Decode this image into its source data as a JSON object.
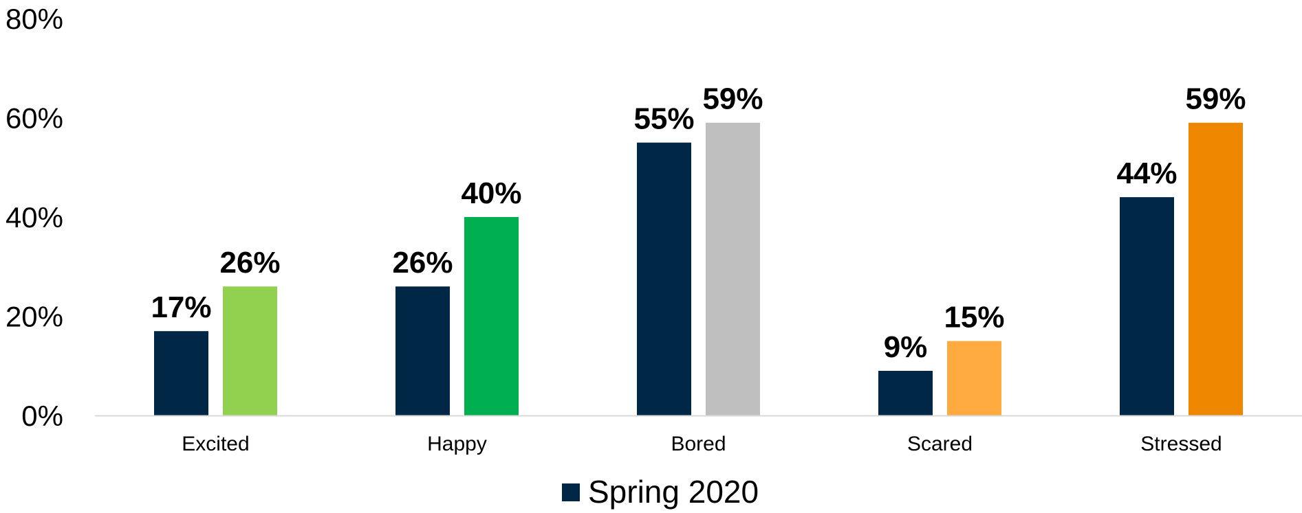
{
  "chart_data": {
    "type": "bar",
    "title": "",
    "xlabel": "",
    "ylabel": "",
    "categories": [
      "Excited",
      "Happy",
      "Bored",
      "Scared",
      "Stressed"
    ],
    "ylim": [
      0,
      80
    ],
    "y_ticks": [
      0,
      20,
      40,
      60,
      80
    ],
    "y_tick_labels": [
      "0%",
      "20%",
      "40%",
      "60%",
      "80%"
    ],
    "grid": false,
    "legend_position": "bottom",
    "series": [
      {
        "name": "Spring 2020",
        "values": [
          17,
          26,
          55,
          9,
          44
        ],
        "labels": [
          "17%",
          "26%",
          "55%",
          "9%",
          "44%"
        ],
        "colors": [
          "#002745",
          "#002745",
          "#002745",
          "#002745",
          "#002745"
        ]
      },
      {
        "values": [
          26,
          40,
          59,
          15,
          59
        ],
        "labels": [
          "26%",
          "40%",
          "59%",
          "15%",
          "59%"
        ],
        "colors": [
          "#92D050",
          "#00B050",
          "#BFBFBF",
          "#FFAB40",
          "#EE8600"
        ]
      }
    ]
  },
  "legend": {
    "items": [
      {
        "label": "Spring 2020",
        "color": "#002745"
      }
    ]
  },
  "colors": {
    "axis_line": "#D9D9D9"
  }
}
